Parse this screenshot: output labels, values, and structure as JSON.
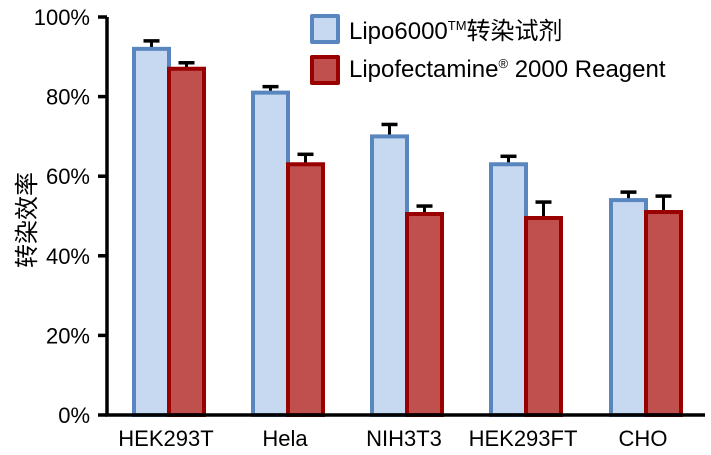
{
  "chart_data": {
    "type": "bar",
    "title": "",
    "xlabel": "",
    "ylabel": "转染效率",
    "ylim": [
      0,
      100
    ],
    "yticks": [
      "0%",
      "20%",
      "40%",
      "60%",
      "80%",
      "100%"
    ],
    "grid": false,
    "legend_position": "top-right",
    "categories": [
      "HEK293T",
      "Hela",
      "NIH3T3",
      "HEK293FT",
      "CHO"
    ],
    "series": [
      {
        "name": "Lipo6000™转染试剂",
        "name_main": "Lipo6000",
        "name_sup": "TM",
        "name_suffix": "转染试剂",
        "fill": "#c6d9f1",
        "border": "#5a86c0",
        "values": [
          92,
          81,
          70,
          63,
          54
        ],
        "error": [
          2,
          1.5,
          3,
          2,
          2
        ]
      },
      {
        "name": "Lipofectamine® 2000 Reagent",
        "name_main": "Lipofectamine",
        "name_sup": "®",
        "name_suffix": " 2000 Reagent",
        "fill": "#c0504d",
        "border": "#990000",
        "values": [
          87,
          63,
          50.5,
          49.5,
          51
        ],
        "error": [
          1.5,
          2.5,
          2,
          4,
          4
        ]
      }
    ]
  },
  "legend": {
    "items": [
      {
        "main": "Lipo6000",
        "sup": "TM",
        "suffix": "转染试剂"
      },
      {
        "main": "Lipofectamine",
        "sup": "®",
        "suffix": " 2000 Reagent"
      }
    ]
  }
}
